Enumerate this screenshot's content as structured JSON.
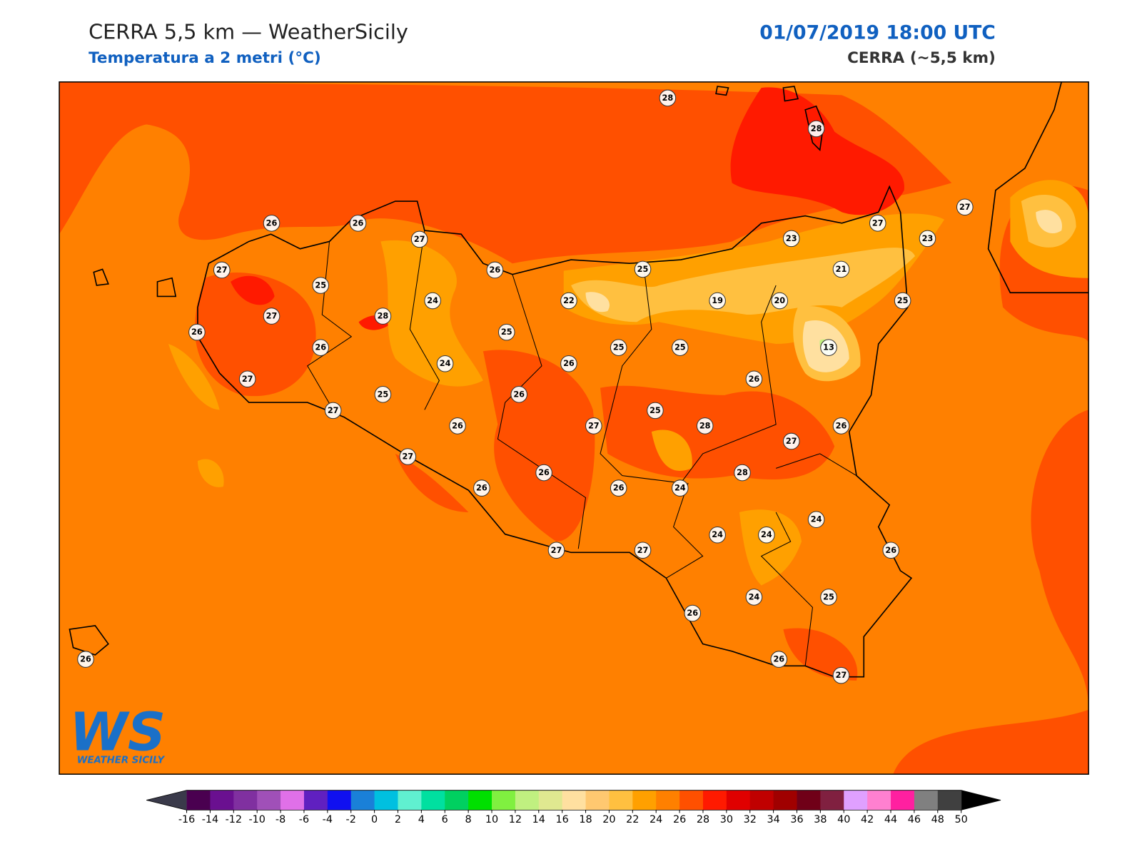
{
  "header": {
    "title": "CERRA 5,5 km — WeatherSicily",
    "subtitle": "Temperatura a 2 metri (°C)",
    "datetime": "01/07/2019 18:00 UTC",
    "model": "CERRA (~5,5 km)"
  },
  "logo": {
    "mark": "WS",
    "name": "WEATHER SICILY"
  },
  "stations": [
    28,
    28,
    26,
    26,
    27,
    27,
    27,
    23,
    23,
    27,
    26,
    25,
    21,
    25,
    24,
    22,
    19,
    20,
    25,
    27,
    28,
    26,
    25,
    26,
    25,
    25,
    13,
    24,
    26,
    27,
    26,
    25,
    26,
    27,
    25,
    26,
    27,
    28,
    26,
    27,
    27,
    28,
    26,
    26,
    26,
    24,
    24,
    24,
    24,
    26,
    27,
    27,
    24,
    25,
    26,
    26,
    26,
    27
  ],
  "colorbar": {
    "ticks": [
      -16,
      -14,
      -12,
      -10,
      -8,
      -6,
      -4,
      -2,
      0,
      2,
      4,
      6,
      8,
      10,
      12,
      14,
      16,
      18,
      20,
      22,
      24,
      26,
      28,
      30,
      32,
      34,
      36,
      38,
      40,
      42,
      44,
      46,
      48,
      50
    ],
    "colors": [
      "#4a0050",
      "#6a1090",
      "#8030a0",
      "#a050b8",
      "#e070e8",
      "#6020c0",
      "#1010f0",
      "#1a80d8",
      "#00c0e0",
      "#60f0d0",
      "#00e0a0",
      "#00d060",
      "#00e000",
      "#80f040",
      "#c0f080",
      "#e0e890",
      "#ffe0a0",
      "#ffc870",
      "#ffc040",
      "#ffa000",
      "#ff8000",
      "#ff5000",
      "#ff1a00",
      "#e00000",
      "#c00000",
      "#a00000",
      "#700018",
      "#802040",
      "#e0a0ff",
      "#ff80d0",
      "#ff20a0",
      "#808080",
      "#404040"
    ],
    "under_color": "#3a3a4a",
    "over_color": "#000000"
  }
}
